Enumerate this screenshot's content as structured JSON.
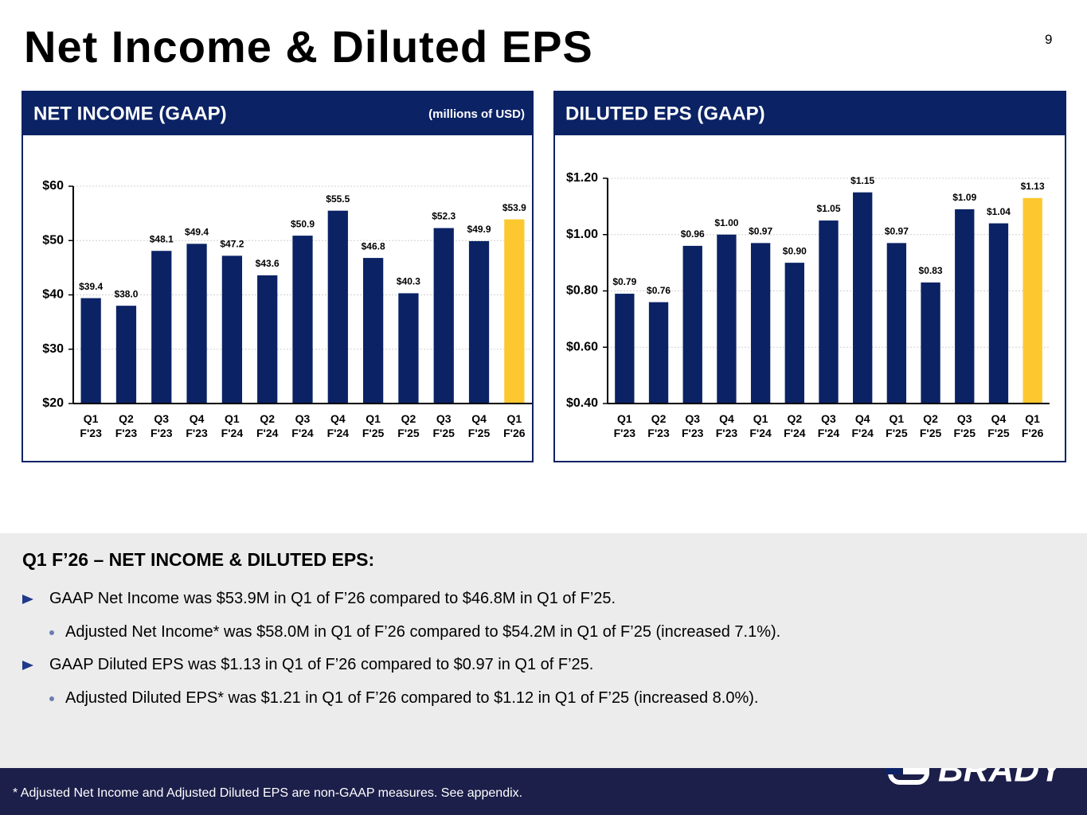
{
  "title": "Net Income & Diluted EPS",
  "page_number": 9,
  "chart_data": [
    {
      "type": "bar",
      "title": "NET INCOME (GAAP)",
      "subtitle": "(millions of USD)",
      "categories": [
        "Q1 F'23",
        "Q2 F'23",
        "Q3 F'23",
        "Q4 F'23",
        "Q1 F'24",
        "Q2 F'24",
        "Q3 F'24",
        "Q4 F'24",
        "Q1 F'25",
        "Q2 F'25",
        "Q3 F'25",
        "Q4 F'25",
        "Q1 F'26"
      ],
      "values": [
        39.4,
        38.0,
        48.1,
        49.4,
        47.2,
        43.6,
        50.9,
        55.5,
        46.8,
        40.3,
        52.3,
        49.9,
        53.9
      ],
      "value_labels": [
        "$39.4",
        "$38.0",
        "$48.1",
        "$49.4",
        "$47.2",
        "$43.6",
        "$50.9",
        "$55.5",
        "$46.8",
        "$40.3",
        "$52.3",
        "$49.9",
        "$53.9"
      ],
      "colors": [
        "#0b2265",
        "#0b2265",
        "#0b2265",
        "#0b2265",
        "#0b2265",
        "#0b2265",
        "#0b2265",
        "#0b2265",
        "#0b2265",
        "#0b2265",
        "#0b2265",
        "#0b2265",
        "#fdc82f"
      ],
      "ylim": [
        20,
        60
      ],
      "yticks": [
        {
          "value": 20,
          "label": "$20"
        },
        {
          "value": 30,
          "label": "$30"
        },
        {
          "value": 40,
          "label": "$40"
        },
        {
          "value": 50,
          "label": "$50"
        },
        {
          "value": 60,
          "label": "$60"
        }
      ],
      "grid": true
    },
    {
      "type": "bar",
      "title": "DILUTED EPS (GAAP)",
      "categories": [
        "Q1 F'23",
        "Q2 F'23",
        "Q3 F'23",
        "Q4 F'23",
        "Q1 F'24",
        "Q2 F'24",
        "Q3 F'24",
        "Q4 F'24",
        "Q1 F'25",
        "Q2 F'25",
        "Q3 F'25",
        "Q4 F'25",
        "Q1 F'26"
      ],
      "values": [
        0.79,
        0.76,
        0.96,
        1.0,
        0.97,
        0.9,
        1.05,
        1.15,
        0.97,
        0.83,
        1.09,
        1.04,
        1.13
      ],
      "value_labels": [
        "$0.79",
        "$0.76",
        "$0.96",
        "$1.00",
        "$0.97",
        "$0.90",
        "$1.05",
        "$1.15",
        "$0.97",
        "$0.83",
        "$1.09",
        "$1.04",
        "$1.13"
      ],
      "colors": [
        "#0b2265",
        "#0b2265",
        "#0b2265",
        "#0b2265",
        "#0b2265",
        "#0b2265",
        "#0b2265",
        "#0b2265",
        "#0b2265",
        "#0b2265",
        "#0b2265",
        "#0b2265",
        "#fdc82f"
      ],
      "ylim": [
        0.4,
        1.2
      ],
      "yticks": [
        {
          "value": 0.4,
          "label": "$0.40"
        },
        {
          "value": 0.6,
          "label": "$0.60"
        },
        {
          "value": 0.8,
          "label": "$0.80"
        },
        {
          "value": 1.0,
          "label": "$1.00"
        },
        {
          "value": 1.2,
          "label": "$1.20"
        }
      ],
      "grid": true
    }
  ],
  "summary": {
    "heading": "Q1 F’26 – NET INCOME & DILUTED EPS:",
    "bullets": [
      {
        "level": 1,
        "text": "GAAP Net Income was $53.9M in Q1 of F’26 compared to $46.8M in Q1 of F’25."
      },
      {
        "level": 2,
        "text": "Adjusted Net Income* was $58.0M in Q1 of F’26 compared to $54.2M in Q1 of F’25 (increased 7.1%)."
      },
      {
        "level": 1,
        "text": "GAAP Diluted EPS was $1.13 in Q1 of F’26 compared to $0.97 in Q1 of F’25."
      },
      {
        "level": 2,
        "text": "Adjusted Diluted EPS* was $1.21 in Q1 of F’26 compared to $1.12 in Q1 of F’25 (increased 8.0%)."
      }
    ]
  },
  "footnote": "* Adjusted Net Income and Adjusted Diluted EPS are non-GAAP measures.  See appendix.",
  "logo": "BRADY"
}
